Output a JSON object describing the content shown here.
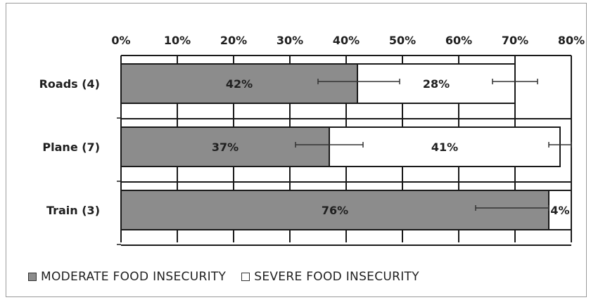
{
  "chart_data": {
    "type": "bar",
    "orientation": "horizontal",
    "stacked": true,
    "categories": [
      "Roads (4)",
      "Plane (7)",
      "Train (3)"
    ],
    "series": [
      {
        "name": "MODERATE FOOD INSECURITY",
        "values": [
          42,
          37,
          76
        ],
        "labels": [
          "42%",
          "37%",
          "76%"
        ],
        "error_low": [
          35,
          31,
          63
        ],
        "error_high": [
          49.5,
          43,
          76
        ],
        "color": "#8c8c8c"
      },
      {
        "name": "SEVERE FOOD INSECURITY",
        "values": [
          28,
          41,
          4
        ],
        "labels": [
          "28%",
          "41%",
          "4%"
        ],
        "error_low": [
          66,
          76,
          null
        ],
        "error_high": [
          74,
          80,
          null
        ],
        "color": "#ffffff"
      }
    ],
    "xticks": [
      "0%",
      "10%",
      "20%",
      "30%",
      "40%",
      "50%",
      "60%",
      "70%",
      "80%"
    ],
    "xlim": [
      0,
      80
    ],
    "x_axis_position": "top",
    "grid": true,
    "legend_position": "bottom"
  }
}
